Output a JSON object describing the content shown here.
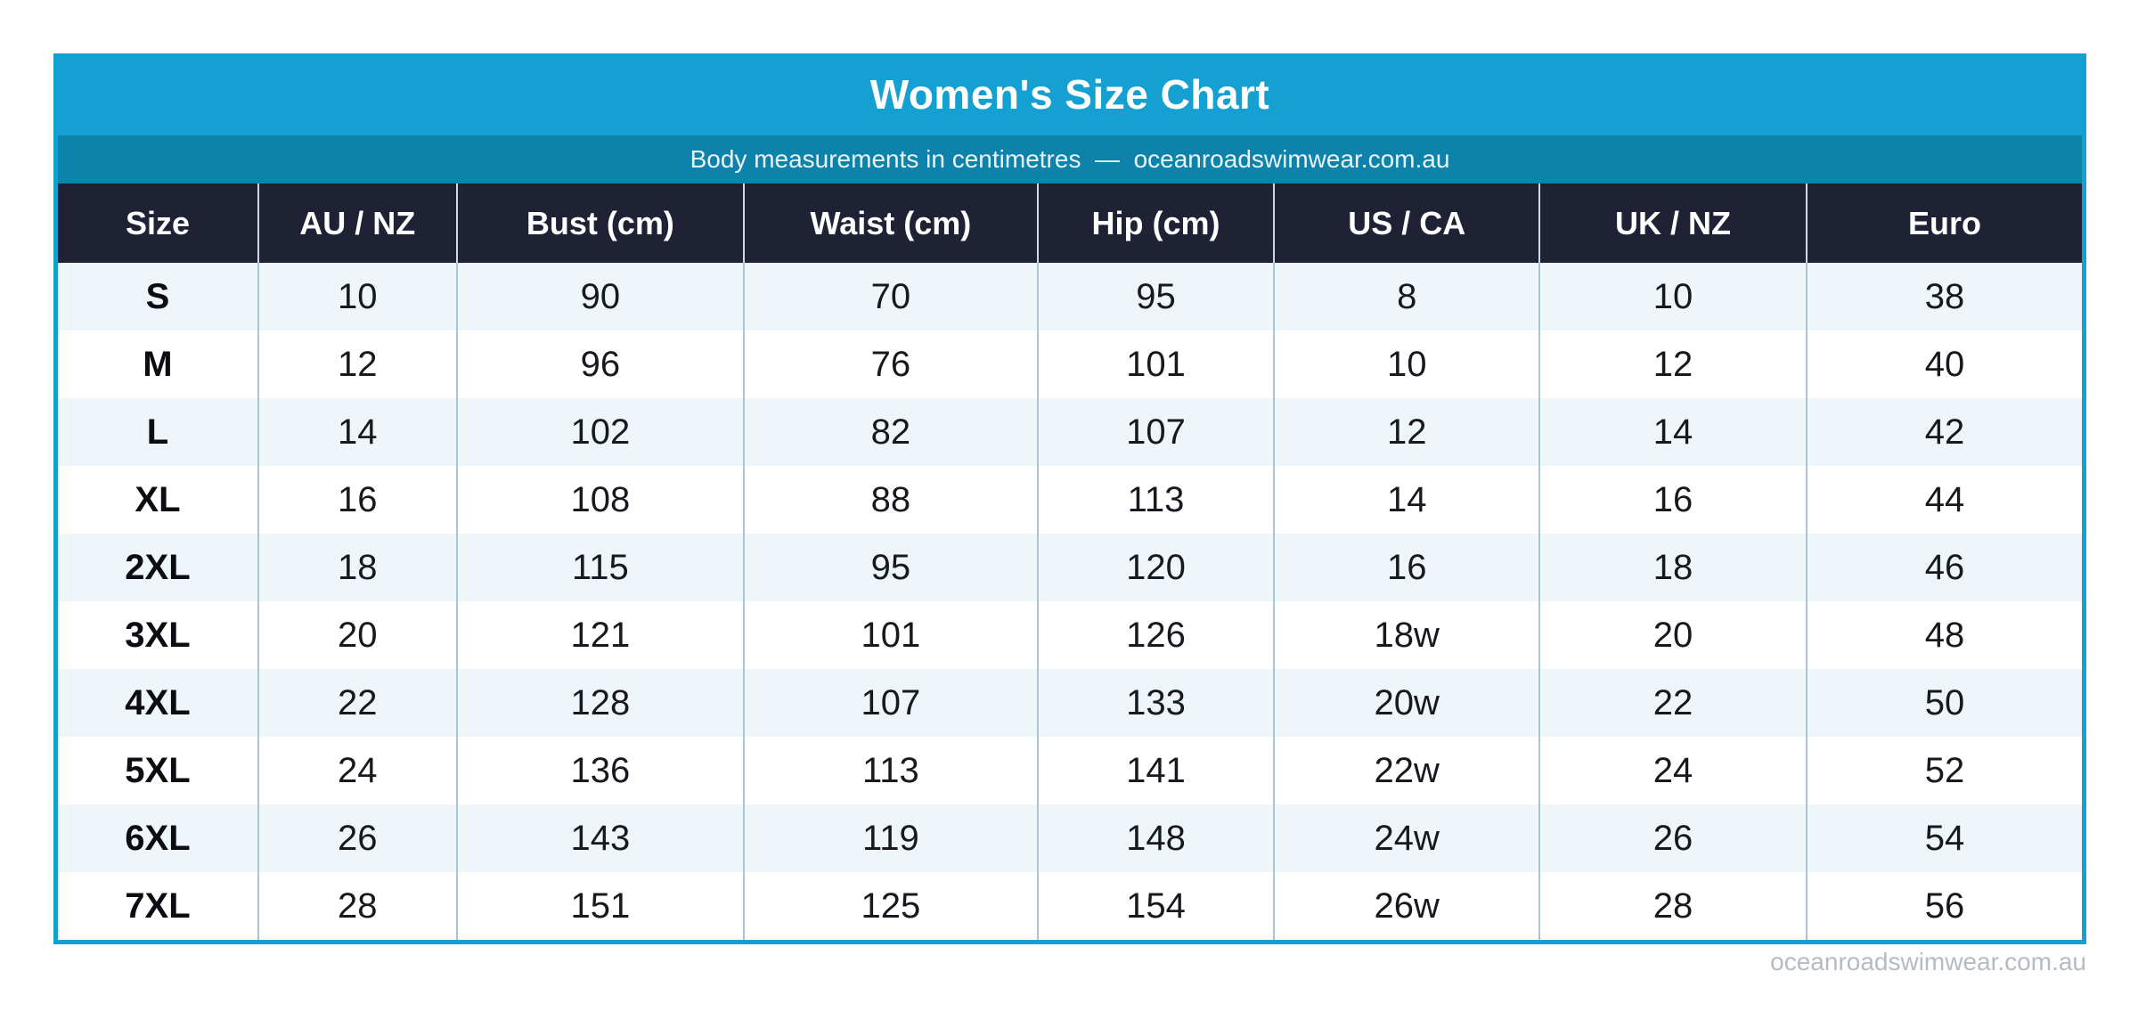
{
  "header": {
    "title": "Women's Size Chart",
    "subtitle": "Body measurements in centimetres  —  oceanroadswimwear.com.au"
  },
  "footer": {
    "watermark": "oceanroadswimwear.com.au"
  },
  "colors": {
    "title_bar_bg": "#14a0d0",
    "subtitle_bar_bg": "#0d82ab",
    "header_row_bg": "#1e2234",
    "alt_row_bg": "#eef6fa",
    "card_border": "#14a0d0",
    "header_text": "#ffffff",
    "cell_text": "#17191e",
    "watermark_text": "#b5bbc0"
  },
  "chart_data": {
    "type": "table",
    "title": "Women's Size Chart",
    "subtitle": "Body measurements in centimetres — oceanroadswimwear.com.au",
    "columns": [
      "Size",
      "AU / NZ",
      "Bust (cm)",
      "Waist (cm)",
      "Hip (cm)",
      "US / CA",
      "UK / NZ",
      "Euro"
    ],
    "rows": [
      [
        "S",
        "10",
        "90",
        "70",
        "95",
        "8",
        "10",
        "38"
      ],
      [
        "M",
        "12",
        "96",
        "76",
        "101",
        "10",
        "12",
        "40"
      ],
      [
        "L",
        "14",
        "102",
        "82",
        "107",
        "12",
        "14",
        "42"
      ],
      [
        "XL",
        "16",
        "108",
        "88",
        "113",
        "14",
        "16",
        "44"
      ],
      [
        "2XL",
        "18",
        "115",
        "95",
        "120",
        "16",
        "18",
        "46"
      ],
      [
        "3XL",
        "20",
        "121",
        "101",
        "126",
        "18w",
        "20",
        "48"
      ],
      [
        "4XL",
        "22",
        "128",
        "107",
        "133",
        "20w",
        "22",
        "50"
      ],
      [
        "5XL",
        "24",
        "136",
        "113",
        "141",
        "22w",
        "24",
        "52"
      ],
      [
        "6XL",
        "26",
        "143",
        "119",
        "148",
        "24w",
        "26",
        "54"
      ],
      [
        "7XL",
        "28",
        "151",
        "125",
        "154",
        "26w",
        "28",
        "56"
      ]
    ]
  }
}
